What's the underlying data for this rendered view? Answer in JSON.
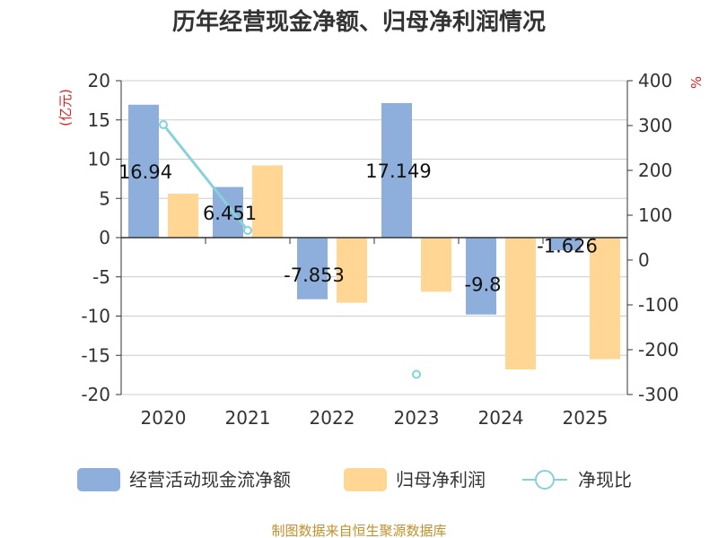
{
  "title": "历年经营现金净额、归母净利润情况",
  "source": "制图数据来自恒生聚源数据库",
  "colors": {
    "bar1": "#8eaedc",
    "bar2": "#ffd693",
    "line": "#86d1da",
    "axis": "#333333",
    "grid": "#cccccc",
    "unit": "#e02020"
  },
  "chart_data": {
    "type": "bar+line",
    "categories": [
      "2020",
      "2021",
      "2022",
      "2023",
      "2024",
      "2025"
    ],
    "y_left": {
      "unit": "(亿元)",
      "min": -20,
      "max": 20,
      "ticks": [
        20,
        15,
        10,
        5,
        0,
        -5,
        -10,
        -15,
        -20
      ]
    },
    "y_right": {
      "unit": "%",
      "min": -300,
      "max": 400,
      "ticks": [
        400,
        300,
        200,
        100,
        0,
        -100,
        -200,
        -300
      ]
    },
    "series": [
      {
        "name": "经营活动现金流净额",
        "type": "bar",
        "axis": "left",
        "values": [
          16.94,
          6.451,
          -7.853,
          17.149,
          -9.8,
          -1.626
        ],
        "labels": [
          "16.94",
          "6.451",
          "-7.853",
          "17.149",
          "-9.8",
          "-1.626"
        ]
      },
      {
        "name": "归母净利润",
        "type": "bar",
        "axis": "left",
        "values": [
          5.6,
          9.2,
          -8.3,
          -6.9,
          -16.8,
          -15.5
        ]
      },
      {
        "name": "净现比",
        "type": "line",
        "axis": "right",
        "values": [
          302,
          66,
          null,
          -255,
          null,
          null
        ]
      }
    ],
    "grid": true,
    "legend": "bottom"
  }
}
